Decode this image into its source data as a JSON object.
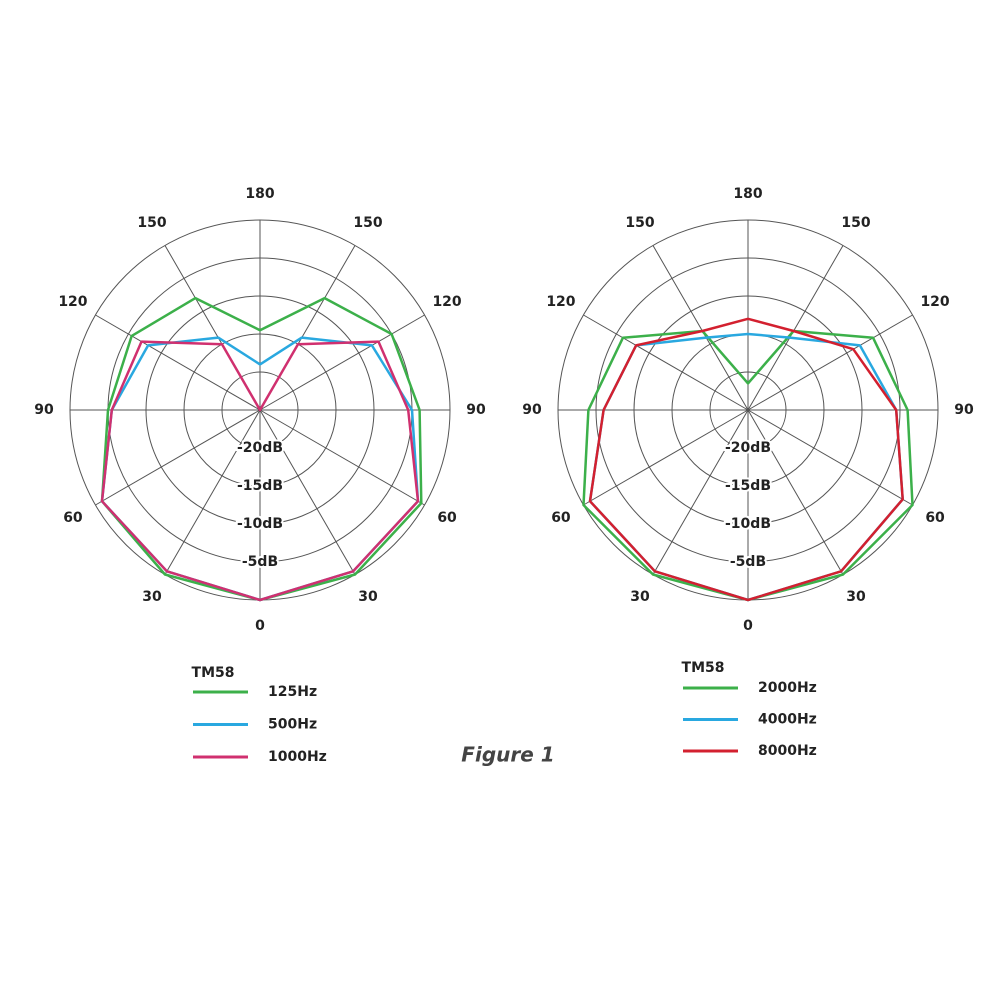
{
  "caption": "Figure 1",
  "chart_data": [
    {
      "type": "polar",
      "legend_title": "TM58",
      "theta": [
        0,
        30,
        60,
        90,
        120,
        150,
        180,
        210,
        240,
        270,
        300,
        330
      ],
      "rlim": [
        -25,
        0
      ],
      "rticks": [
        {
          "value": -20,
          "label": "-20dB"
        },
        {
          "value": -15,
          "label": "-15dB"
        },
        {
          "value": -10,
          "label": "-10dB"
        },
        {
          "value": -5,
          "label": "-5dB"
        }
      ],
      "thetaticks": [
        0,
        30,
        60,
        90,
        120,
        150,
        180,
        {
          "value": 210,
          "label": "150"
        },
        {
          "value": 240,
          "label": "120"
        },
        {
          "value": 270,
          "label": "90"
        },
        {
          "value": 300,
          "label": "60"
        },
        {
          "value": 330,
          "label": "30"
        }
      ],
      "series": [
        {
          "name": "125Hz",
          "color": "#3cb04a",
          "values": [
            0,
            0,
            -0.5,
            -4,
            -5,
            -8,
            -14.5,
            -8,
            -5.5,
            -5,
            -1,
            0
          ]
        },
        {
          "name": "500Hz",
          "color": "#29a8e0",
          "values": [
            0,
            -0.5,
            -1,
            -5,
            -8,
            -14,
            -19,
            -14,
            -8,
            -5.5,
            -1,
            -0.5
          ]
        },
        {
          "name": "1000Hz",
          "color": "#d0306f",
          "values": [
            0,
            -0.5,
            -1,
            -5.5,
            -7,
            -15,
            -25,
            -15,
            -7,
            -5.5,
            -1,
            -0.5
          ]
        }
      ]
    },
    {
      "type": "polar",
      "legend_title": "TM58",
      "theta": [
        0,
        30,
        60,
        90,
        120,
        150,
        180,
        210,
        240,
        270,
        300,
        330
      ],
      "rlim": [
        -25,
        0
      ],
      "rticks": [
        {
          "value": -20,
          "label": "-20dB"
        },
        {
          "value": -15,
          "label": "-15dB"
        },
        {
          "value": -10,
          "label": "-10dB"
        },
        {
          "value": -5,
          "label": "-5dB"
        }
      ],
      "thetaticks": [
        0,
        30,
        60,
        90,
        120,
        150,
        180,
        {
          "value": 210,
          "label": "150"
        },
        {
          "value": 240,
          "label": "120"
        },
        {
          "value": 270,
          "label": "90"
        },
        {
          "value": 300,
          "label": "60"
        },
        {
          "value": 330,
          "label": "30"
        }
      ],
      "series": [
        {
          "name": "2000Hz",
          "color": "#3cb04a",
          "values": [
            0,
            0,
            0,
            -4,
            -6,
            -13,
            -21.5,
            -13,
            -6,
            -4,
            0,
            0
          ]
        },
        {
          "name": "4000Hz",
          "color": "#29a8e0",
          "values": [
            0,
            -0.5,
            -1.5,
            -5.5,
            -8,
            -14,
            -15,
            -14,
            -8,
            -6,
            -1,
            -0.5
          ]
        },
        {
          "name": "8000Hz",
          "color": "#d3202f",
          "values": [
            0,
            -0.5,
            -1.5,
            -5.5,
            -9,
            -13,
            -13,
            -13,
            -8,
            -6,
            -1,
            -0.5
          ]
        }
      ]
    }
  ]
}
